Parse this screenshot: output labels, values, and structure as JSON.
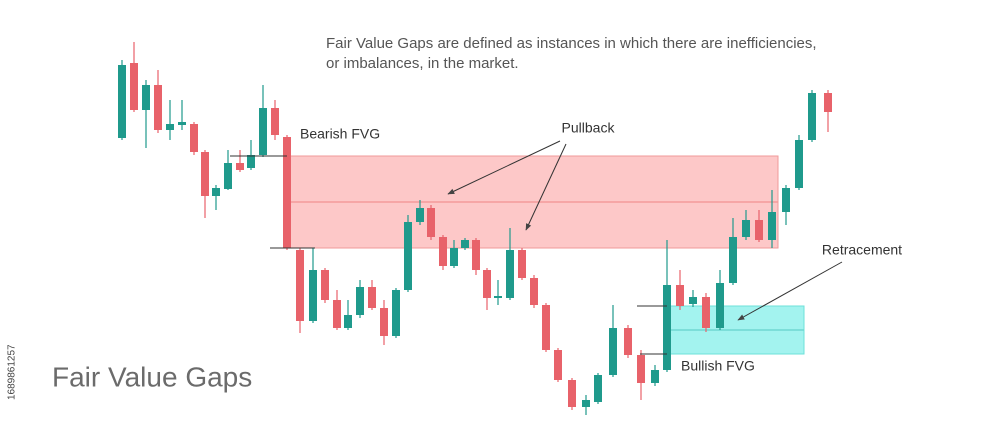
{
  "header": {
    "description": [
      "Fair Value Gaps are defined as instances in which there are inefficiencies,",
      "or imbalances, in the market."
    ],
    "title": "Fair Value Gaps"
  },
  "labels": {
    "bearish": "Bearish FVG",
    "pullback": "Pullback",
    "retracement": "Retracement",
    "bullish": "Bullish FVG"
  },
  "side_id": "1689861257"
}
